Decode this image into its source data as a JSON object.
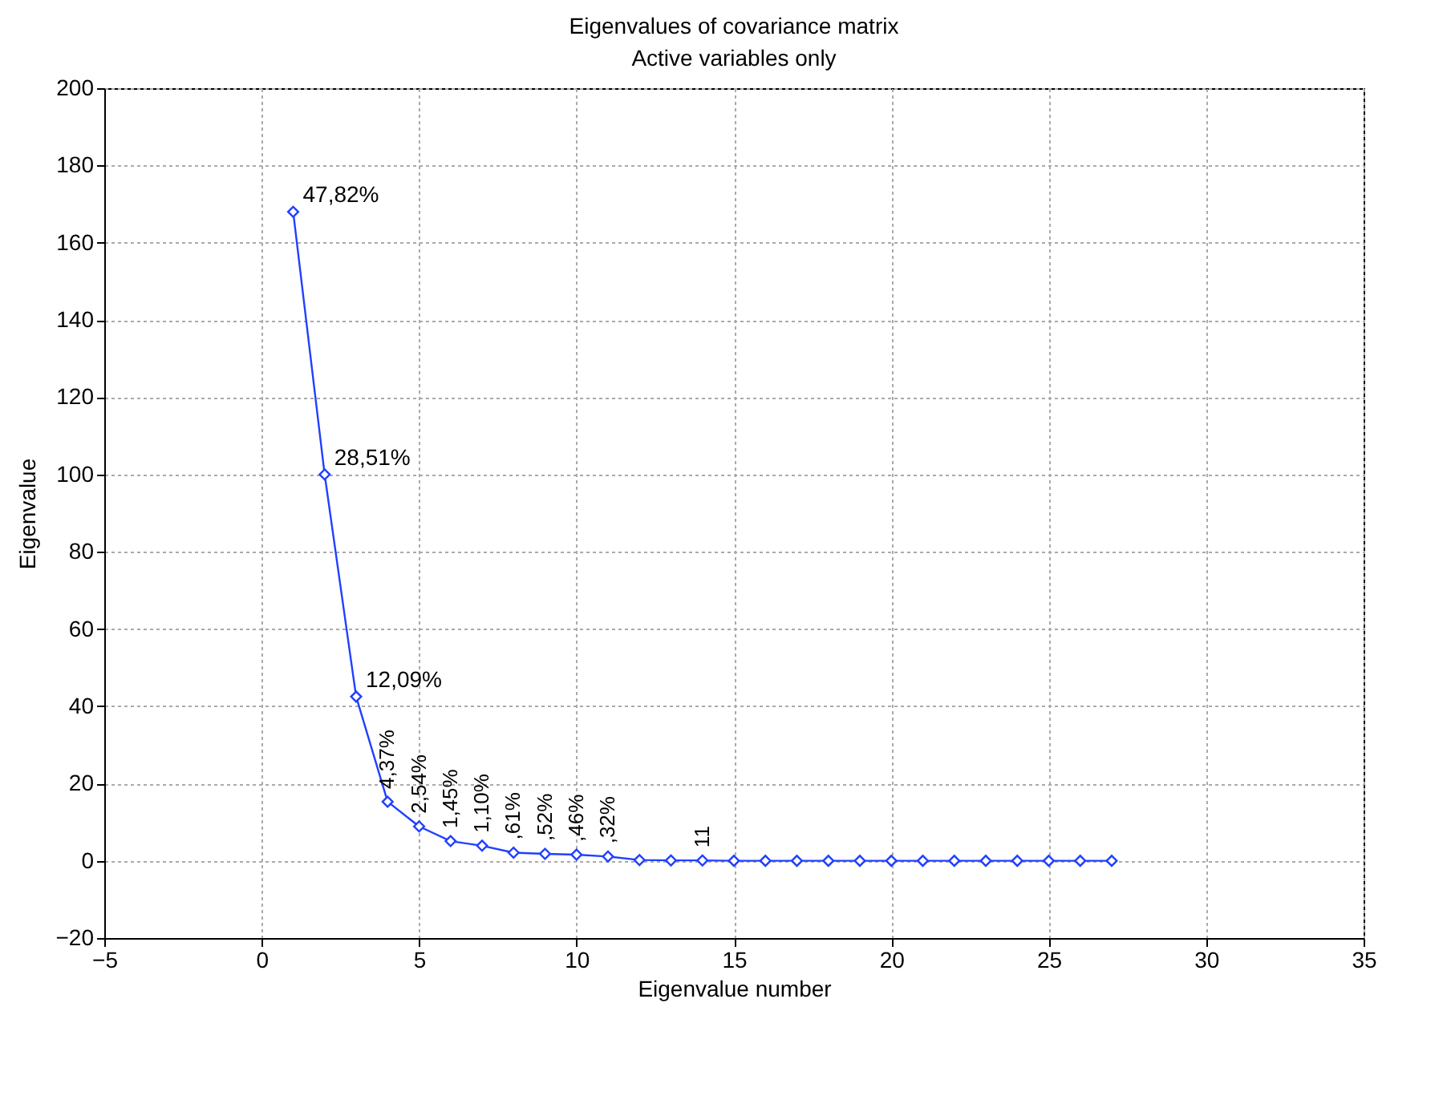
{
  "chart_data": {
    "type": "line",
    "title": "Eigenvalues of covariance matrix",
    "subtitle": "Active variables only",
    "xlabel": "Eigenvalue number",
    "ylabel": "Eigenvalue",
    "x": [
      1,
      2,
      3,
      4,
      5,
      6,
      7,
      8,
      9,
      10,
      11,
      12,
      13,
      14,
      15,
      16,
      17,
      18,
      19,
      20,
      21,
      22,
      23,
      24,
      25,
      26,
      27
    ],
    "series": [
      {
        "color": "#2040ff",
        "values": [
          168,
          100,
          42.5,
          15.3,
          8.9,
          5.1,
          3.9,
          2.1,
          1.8,
          1.6,
          1.1,
          0.2,
          0.1,
          0.1,
          0,
          0,
          0,
          0,
          0,
          0,
          0,
          0,
          0,
          0,
          0,
          0,
          0
        ]
      }
    ],
    "annotations": [
      {
        "text": "47,82%",
        "x": 1,
        "y": 168
      },
      {
        "text": "28,51%",
        "x": 2,
        "y": 100
      },
      {
        "text": "12,09%",
        "x": 3,
        "y": 42.5
      },
      {
        "text": "4,37%",
        "x": 4,
        "y": 15.3
      },
      {
        "text": "2,54%",
        "x": 5,
        "y": 8.9
      },
      {
        "text": "1,45%",
        "x": 6,
        "y": 5.1
      },
      {
        "text": "1,10%",
        "x": 7,
        "y": 3.9
      },
      {
        "text": ",61%",
        "x": 8,
        "y": 2.1
      },
      {
        "text": ",52%",
        "x": 9,
        "y": 1.8
      },
      {
        "text": ",46%",
        "x": 10,
        "y": 1.6
      },
      {
        "text": ",32%",
        "x": 11,
        "y": 1.1
      },
      {
        "text": "11",
        "x": 14,
        "y": 0.1
      }
    ],
    "xlim": [
      -5,
      35
    ],
    "xticks": [
      -5,
      0,
      5,
      10,
      15,
      20,
      25,
      30,
      35
    ],
    "ylim": [
      -20,
      200
    ],
    "yticks": [
      -20,
      0,
      20,
      40,
      60,
      80,
      100,
      120,
      140,
      160,
      180,
      200
    ],
    "grid": true,
    "marker": "diamond",
    "line_style": "solid"
  }
}
